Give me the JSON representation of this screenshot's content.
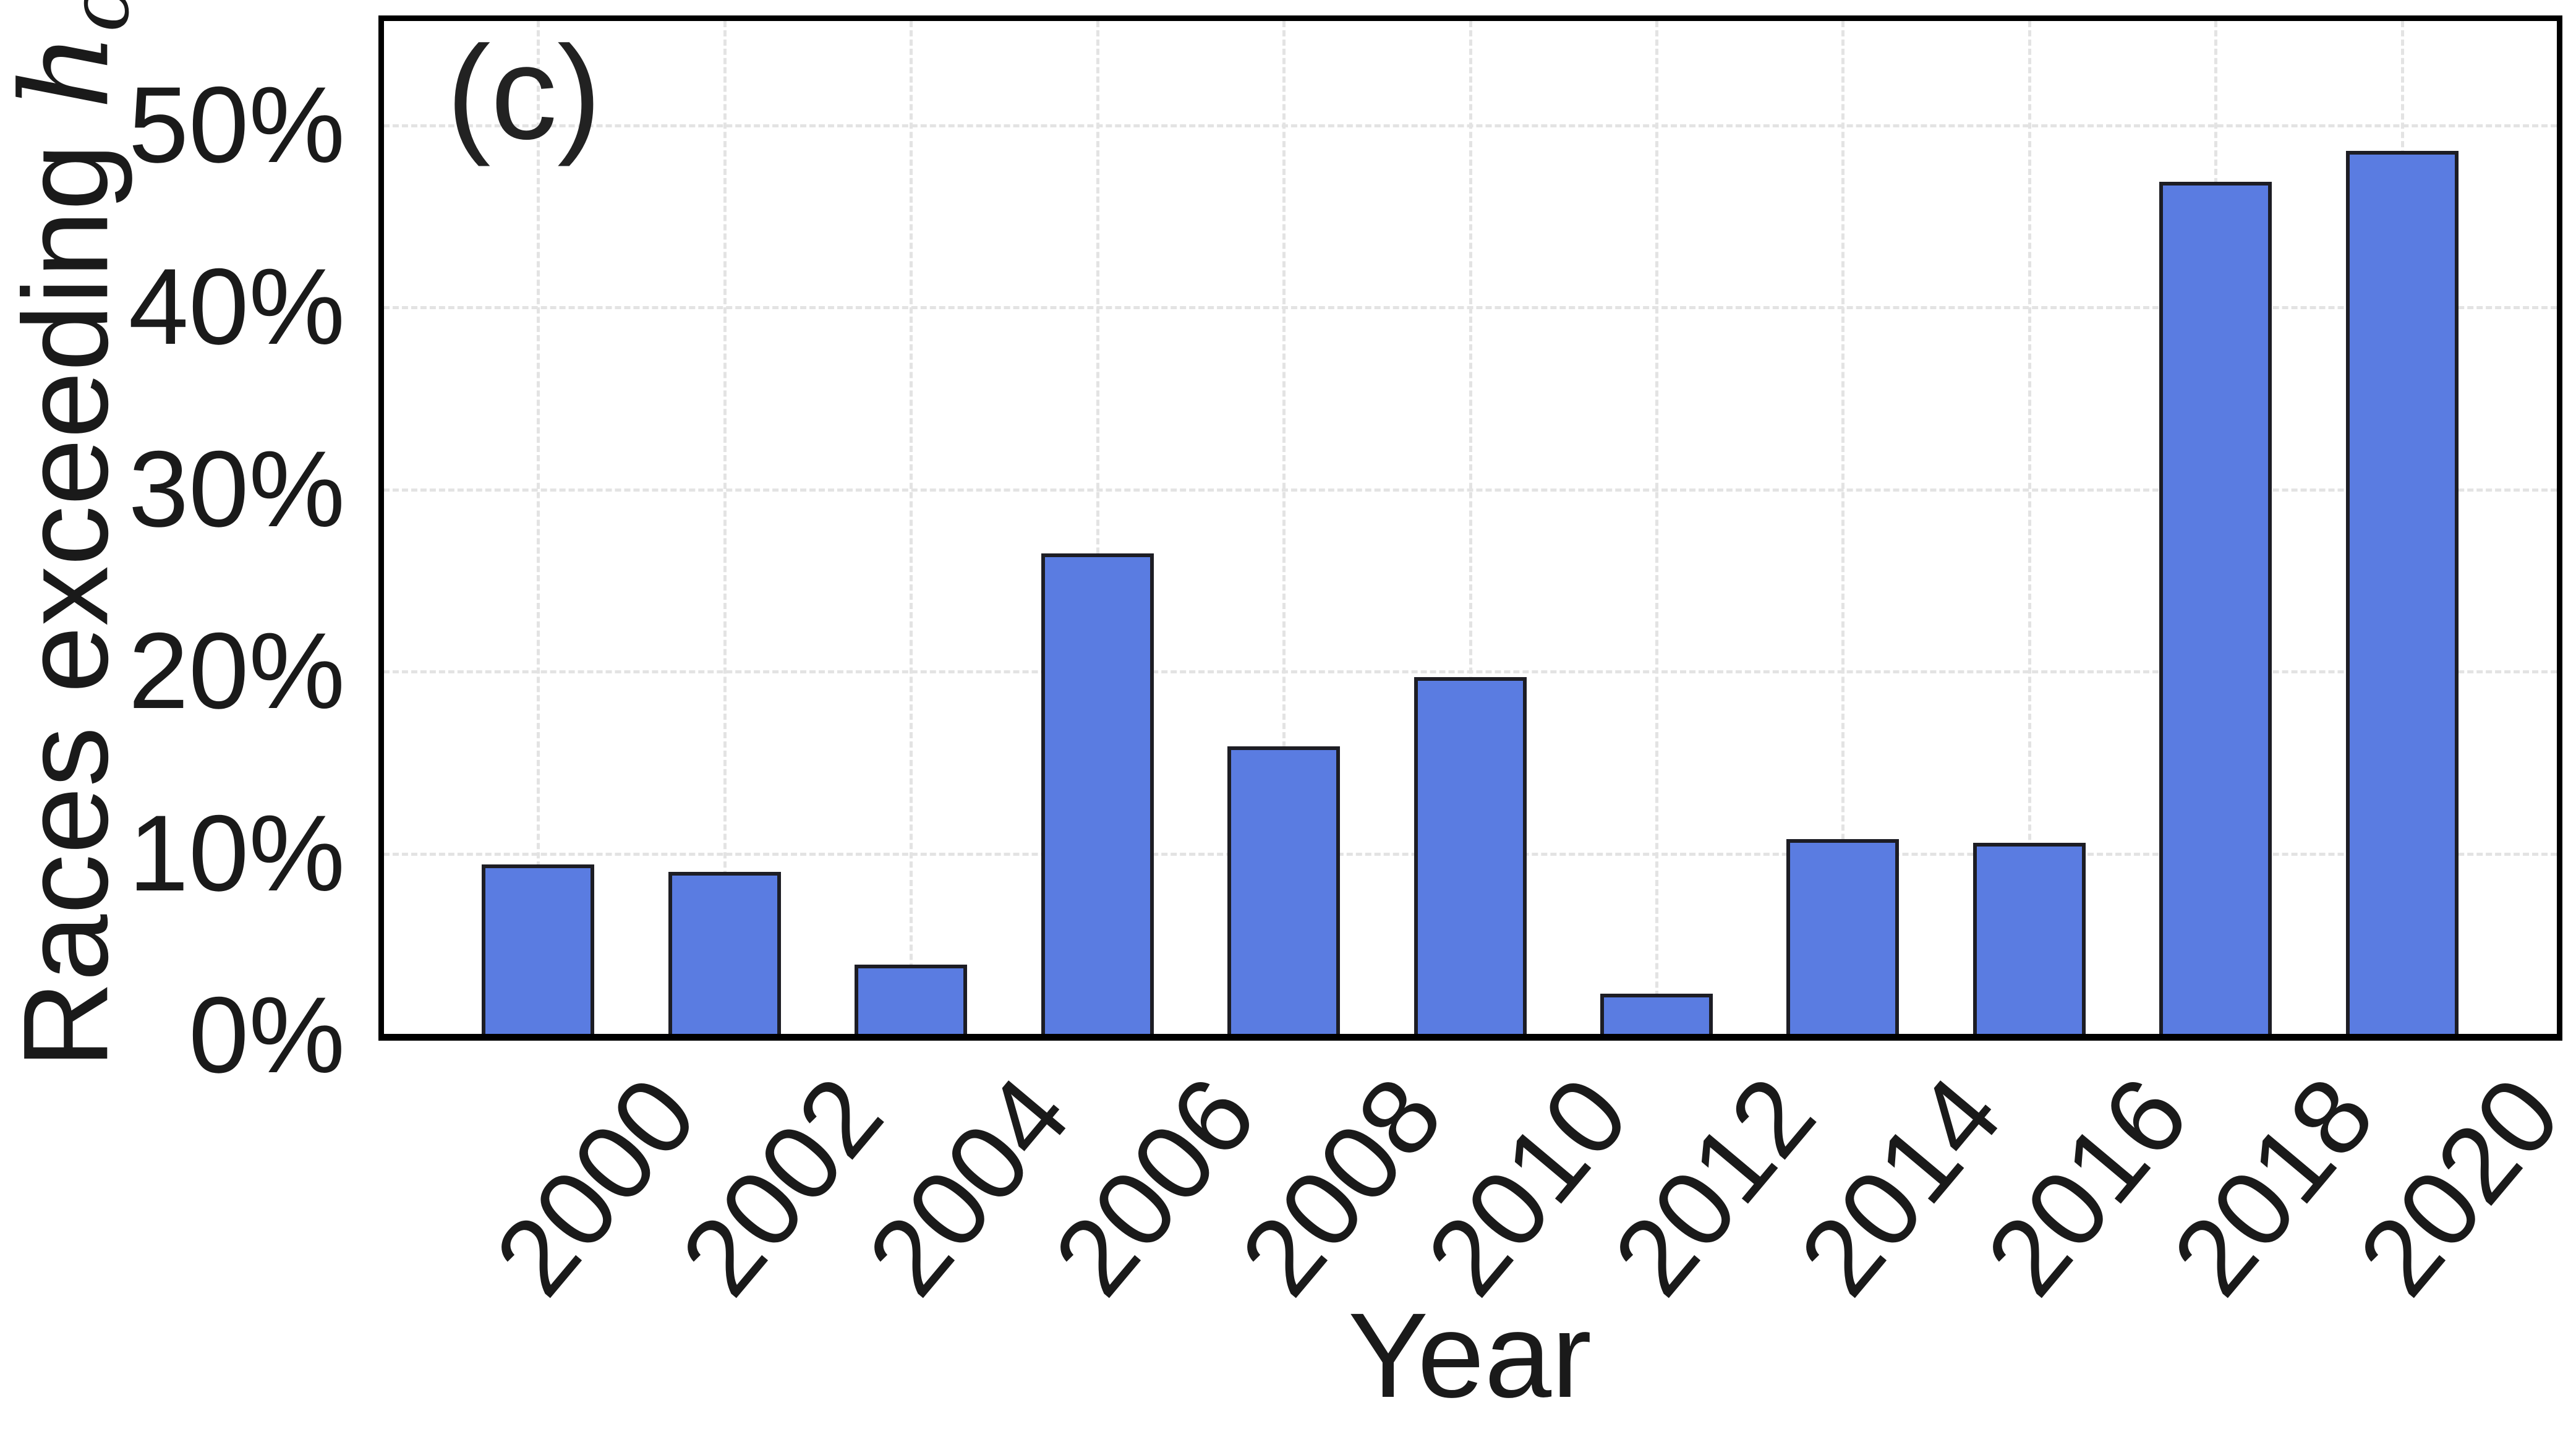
{
  "figure": {
    "panel_label": "(c)",
    "background_color": "#ffffff"
  },
  "chart_data": {
    "type": "bar",
    "title": "",
    "xlabel": "Year",
    "ylabel": "Races exceeding h_c",
    "ylabel_parts": {
      "prefix": "Races exceeding ",
      "var": "h",
      "sub": "c"
    },
    "categories": [
      "2000",
      "2002",
      "2004",
      "2006",
      "2008",
      "2010",
      "2012",
      "2014",
      "2016",
      "2018",
      "2020"
    ],
    "values": [
      9.4,
      9.0,
      3.9,
      26.5,
      15.9,
      19.7,
      2.3,
      10.8,
      10.6,
      46.9,
      48.6
    ],
    "unit": "%",
    "ylim": [
      0,
      56
    ],
    "yticks": [
      {
        "value": 0,
        "label": "0%"
      },
      {
        "value": 10,
        "label": "10%"
      },
      {
        "value": 20,
        "label": "20%"
      },
      {
        "value": 30,
        "label": "30%"
      },
      {
        "value": 40,
        "label": "40%"
      },
      {
        "value": 50,
        "label": "50%"
      }
    ],
    "x_tick_rotation_deg": 50,
    "grid": true,
    "grid_style": "dashed",
    "legend": null,
    "bar_color": "#5a7ce1",
    "bar_edge_color": "#1d1d24",
    "grid_color": "#e3e3e3",
    "spine_color": "#000000",
    "tick_label_color": "#1a1a1a"
  }
}
